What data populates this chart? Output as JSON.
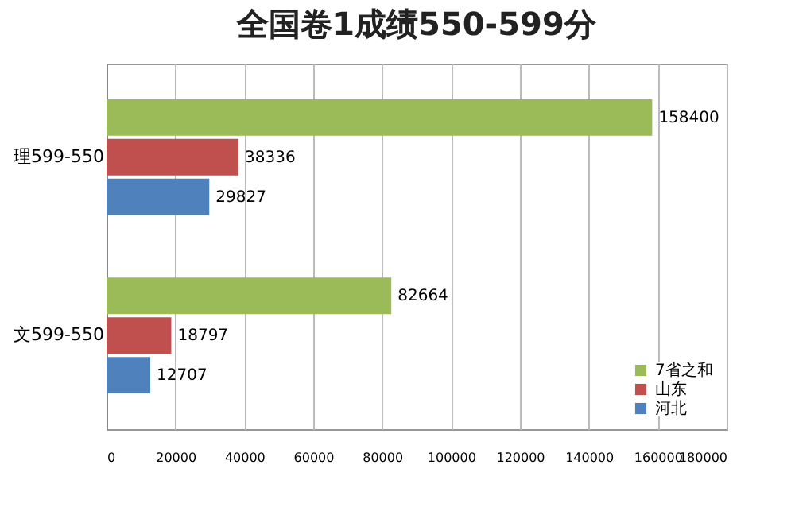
{
  "chart_data": {
    "type": "bar",
    "orientation": "horizontal",
    "title": "全国卷1成绩550-599分",
    "categories": [
      "理599-550",
      "文599-550"
    ],
    "series": [
      {
        "name": "7省之和",
        "color": "#9bbb59",
        "values": [
          158400,
          82664
        ]
      },
      {
        "name": "山东",
        "color": "#c0504d",
        "values": [
          38336,
          18797
        ]
      },
      {
        "name": "河北",
        "color": "#4f81bd",
        "values": [
          29827,
          12707
        ]
      }
    ],
    "xlim": [
      0,
      180000
    ],
    "xticks": [
      0,
      20000,
      40000,
      60000,
      80000,
      100000,
      120000,
      140000,
      160000,
      180000
    ],
    "grid": "x",
    "legend": "bottom right",
    "data_labels": true
  }
}
